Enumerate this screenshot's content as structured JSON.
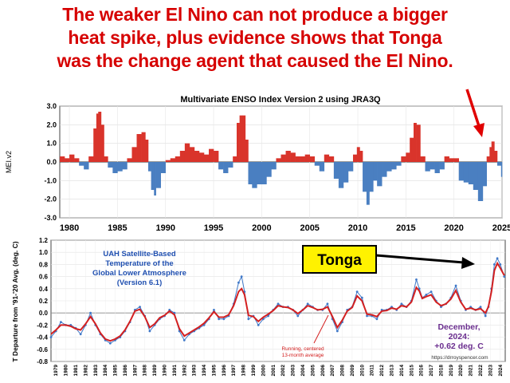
{
  "headline": [
    "The weaker El Nino can not produce a bigger",
    "heat spike, plus evidence shows that Tonga",
    "was the change agent that caused the El Nino."
  ],
  "colors": {
    "headline": "#d60000",
    "positive": "#d9342b",
    "negative": "#4a7fc1",
    "uah_line": "#3f78c8",
    "running_avg": "#d42020",
    "annotation": "#e00000",
    "callout_bg": "#fff200"
  },
  "chart_data": [
    {
      "type": "bar",
      "title": "Multivariate ENSO Index Version 2 using JRA3Q",
      "ylabel": "MEI.v2",
      "ylim": [
        -3.0,
        3.0
      ],
      "xlim": [
        1979,
        2025
      ],
      "y_ticks": [
        "3.0",
        "2.0",
        "1.0",
        "0.0",
        "-1.0",
        "-2.0",
        "-3.0"
      ],
      "x_ticks": [
        "1980",
        "1985",
        "1990",
        "1995",
        "2000",
        "2005",
        "2010",
        "2015",
        "2020",
        "2025"
      ],
      "grid": true,
      "series": [
        {
          "x": [
            1979.0,
            1979.5,
            1980.0,
            1980.5,
            1981.0,
            1981.5,
            1982.0,
            1982.5,
            1982.8,
            1983.0,
            1983.3,
            1983.6,
            1984.0,
            1984.5,
            1985.0,
            1985.5,
            1986.0,
            1986.5,
            1987.0,
            1987.5,
            1987.9,
            1988.2,
            1988.5,
            1988.8,
            1989.0,
            1989.5,
            1990.0,
            1990.5,
            1991.0,
            1991.5,
            1992.0,
            1992.5,
            1993.0,
            1993.5,
            1994.0,
            1994.5,
            1995.0,
            1995.5,
            1996.0,
            1996.5,
            1997.0,
            1997.4,
            1997.7,
            1998.0,
            1998.3,
            1998.6,
            1999.0,
            1999.5,
            2000.0,
            2000.5,
            2001.0,
            2001.5,
            2002.0,
            2002.5,
            2003.0,
            2003.5,
            2004.0,
            2004.5,
            2005.0,
            2005.5,
            2006.0,
            2006.5,
            2007.0,
            2007.5,
            2008.0,
            2008.5,
            2009.0,
            2009.5,
            2009.9,
            2010.2,
            2010.5,
            2010.9,
            2011.2,
            2011.6,
            2012.0,
            2012.5,
            2013.0,
            2013.5,
            2014.0,
            2014.5,
            2015.0,
            2015.4,
            2015.8,
            2016.1,
            2016.5,
            2017.0,
            2017.5,
            2018.0,
            2018.5,
            2019.0,
            2019.5,
            2020.0,
            2020.5,
            2021.0,
            2021.5,
            2022.0,
            2022.5,
            2023.0,
            2023.4,
            2023.7,
            2023.9,
            2024.2,
            2024.5,
            2024.9
          ],
          "values": [
            0.3,
            0.2,
            0.4,
            0.2,
            -0.2,
            -0.4,
            0.3,
            1.8,
            2.6,
            2.7,
            2.0,
            0.3,
            -0.3,
            -0.6,
            -0.5,
            -0.4,
            0.2,
            0.8,
            1.5,
            1.6,
            1.2,
            -0.5,
            -1.5,
            -1.8,
            -1.4,
            -0.6,
            0.1,
            0.2,
            0.3,
            0.6,
            1.0,
            0.8,
            0.6,
            0.5,
            0.4,
            0.7,
            0.6,
            -0.4,
            -0.6,
            -0.3,
            0.3,
            2.1,
            2.5,
            2.5,
            1.2,
            -1.2,
            -1.4,
            -1.2,
            -1.2,
            -0.8,
            -0.4,
            0.2,
            0.4,
            0.6,
            0.5,
            0.3,
            0.3,
            0.4,
            0.3,
            -0.2,
            -0.5,
            0.4,
            0.3,
            -0.9,
            -1.4,
            -1.1,
            -0.5,
            0.4,
            0.8,
            0.6,
            -1.6,
            -2.3,
            -1.6,
            -1.0,
            -1.3,
            -0.8,
            -0.5,
            -0.4,
            -0.2,
            0.3,
            0.5,
            1.3,
            2.1,
            2.0,
            0.3,
            -0.5,
            -0.4,
            -0.6,
            -0.4,
            0.3,
            0.2,
            0.2,
            -1.0,
            -1.1,
            -1.2,
            -1.5,
            -2.1,
            -1.3,
            0.3,
            0.8,
            1.1,
            0.6,
            -0.2,
            -0.8
          ]
        }
      ]
    },
    {
      "type": "line",
      "title": "UAH Satellite-Based Temperature of the Global Lower Atmosphere (Version 6.1)",
      "title_lines": [
        "UAH Satellite-Based",
        "Temperature of the",
        "Global Lower Atmosphere",
        "(Version 6.1)"
      ],
      "ylabel": "T Departure from '91-'20 Avg. (deg. C)",
      "ylim": [
        -0.8,
        1.2
      ],
      "xlim": [
        1979,
        2025
      ],
      "y_ticks": [
        "1.2",
        "1.0",
        "0.8",
        "0.6",
        "0.4",
        "0.2",
        "0.0",
        "-0.2",
        "-0.4",
        "-0.6",
        "-0.8"
      ],
      "x_ticks": [
        "1979",
        "1980",
        "1981",
        "1982",
        "1983",
        "1984",
        "1985",
        "1986",
        "1987",
        "1988",
        "1989",
        "1990",
        "1991",
        "1992",
        "1993",
        "1994",
        "1995",
        "1996",
        "1997",
        "1998",
        "1999",
        "2000",
        "2001",
        "2002",
        "2003",
        "2004",
        "2005",
        "2006",
        "2007",
        "2008",
        "2009",
        "2010",
        "2011",
        "2012",
        "2013",
        "2014",
        "2015",
        "2016",
        "2017",
        "2018",
        "2019",
        "2020",
        "2021",
        "2022",
        "2023",
        "2024"
      ],
      "grid": true,
      "series": [
        {
          "x": [
            1979.0,
            1979.5,
            1980.0,
            1980.5,
            1981.0,
            1981.5,
            1982.0,
            1982.5,
            1983.0,
            1983.5,
            1984.0,
            1984.5,
            1985.0,
            1985.5,
            1986.0,
            1986.5,
            1987.0,
            1987.5,
            1988.0,
            1988.5,
            1989.0,
            1989.5,
            1990.0,
            1990.5,
            1991.0,
            1991.5,
            1992.0,
            1992.5,
            1993.0,
            1993.5,
            1994.0,
            1994.5,
            1995.0,
            1995.5,
            1996.0,
            1996.5,
            1997.0,
            1997.5,
            1998.0,
            1998.3,
            1998.6,
            1999.0,
            1999.5,
            2000.0,
            2000.5,
            2001.0,
            2001.5,
            2002.0,
            2002.5,
            2003.0,
            2003.5,
            2004.0,
            2004.5,
            2005.0,
            2005.5,
            2006.0,
            2006.5,
            2007.0,
            2007.5,
            2008.0,
            2008.5,
            2009.0,
            2009.5,
            2010.0,
            2010.5,
            2011.0,
            2011.5,
            2012.0,
            2012.5,
            2013.0,
            2013.5,
            2014.0,
            2014.5,
            2015.0,
            2015.5,
            2016.0,
            2016.3,
            2016.6,
            2017.0,
            2017.5,
            2018.0,
            2018.5,
            2019.0,
            2019.5,
            2020.0,
            2020.5,
            2021.0,
            2021.5,
            2022.0,
            2022.5,
            2023.0,
            2023.3,
            2023.6,
            2023.9,
            2024.2,
            2024.5,
            2024.9
          ],
          "values": [
            -0.4,
            -0.3,
            -0.15,
            -0.2,
            -0.2,
            -0.25,
            -0.35,
            -0.2,
            0.0,
            -0.2,
            -0.35,
            -0.45,
            -0.5,
            -0.45,
            -0.4,
            -0.3,
            -0.15,
            0.05,
            0.1,
            -0.05,
            -0.3,
            -0.2,
            -0.1,
            -0.05,
            0.05,
            0.0,
            -0.3,
            -0.45,
            -0.35,
            -0.3,
            -0.25,
            -0.2,
            -0.1,
            0.05,
            -0.1,
            -0.1,
            -0.05,
            0.15,
            0.5,
            0.6,
            0.35,
            -0.1,
            -0.05,
            -0.2,
            -0.1,
            -0.05,
            0.05,
            0.15,
            0.1,
            0.1,
            0.05,
            -0.05,
            0.05,
            0.15,
            0.1,
            0.05,
            0.05,
            0.15,
            -0.1,
            -0.3,
            -0.15,
            0.05,
            0.1,
            0.35,
            0.25,
            -0.05,
            -0.05,
            -0.1,
            0.05,
            0.05,
            0.1,
            0.05,
            0.15,
            0.1,
            0.2,
            0.55,
            0.4,
            0.25,
            0.3,
            0.35,
            0.2,
            0.1,
            0.15,
            0.25,
            0.45,
            0.2,
            0.05,
            0.1,
            0.05,
            0.1,
            -0.05,
            0.1,
            0.4,
            0.8,
            0.9,
            0.8,
            0.6
          ]
        },
        {
          "name": "Running, centered 13-month average",
          "x": [
            1979.0,
            1979.5,
            1980.0,
            1980.5,
            1981.0,
            1981.5,
            1982.0,
            1982.5,
            1983.0,
            1983.5,
            1984.0,
            1984.5,
            1985.0,
            1985.5,
            1986.0,
            1986.5,
            1987.0,
            1987.5,
            1988.0,
            1988.5,
            1989.0,
            1989.5,
            1990.0,
            1990.5,
            1991.0,
            1991.5,
            1992.0,
            1992.5,
            1993.0,
            1993.5,
            1994.0,
            1994.5,
            1995.0,
            1995.5,
            1996.0,
            1996.5,
            1997.0,
            1997.5,
            1998.0,
            1998.3,
            1998.6,
            1999.0,
            1999.5,
            2000.0,
            2000.5,
            2001.0,
            2001.5,
            2002.0,
            2002.5,
            2003.0,
            2003.5,
            2004.0,
            2004.5,
            2005.0,
            2005.5,
            2006.0,
            2006.5,
            2007.0,
            2007.5,
            2008.0,
            2008.5,
            2009.0,
            2009.5,
            2010.0,
            2010.5,
            2011.0,
            2011.5,
            2012.0,
            2012.5,
            2013.0,
            2013.5,
            2014.0,
            2014.5,
            2015.0,
            2015.5,
            2016.0,
            2016.3,
            2016.6,
            2017.0,
            2017.5,
            2018.0,
            2018.5,
            2019.0,
            2019.5,
            2020.0,
            2020.5,
            2021.0,
            2021.5,
            2022.0,
            2022.5,
            2023.0,
            2023.3,
            2023.6,
            2023.9,
            2024.2,
            2024.5,
            2024.9
          ],
          "values": [
            -0.35,
            -0.28,
            -0.2,
            -0.2,
            -0.22,
            -0.26,
            -0.28,
            -0.18,
            -0.06,
            -0.18,
            -0.33,
            -0.43,
            -0.46,
            -0.43,
            -0.38,
            -0.28,
            -0.14,
            0.03,
            0.06,
            -0.06,
            -0.24,
            -0.18,
            -0.08,
            -0.04,
            0.03,
            -0.03,
            -0.26,
            -0.38,
            -0.33,
            -0.28,
            -0.23,
            -0.17,
            -0.08,
            0.02,
            -0.07,
            -0.07,
            -0.03,
            0.12,
            0.35,
            0.4,
            0.3,
            -0.04,
            -0.06,
            -0.14,
            -0.07,
            -0.02,
            0.04,
            0.12,
            0.1,
            0.09,
            0.05,
            -0.01,
            0.05,
            0.12,
            0.09,
            0.05,
            0.06,
            0.1,
            -0.06,
            -0.24,
            -0.12,
            0.03,
            0.09,
            0.28,
            0.2,
            -0.02,
            -0.03,
            -0.06,
            0.03,
            0.04,
            0.08,
            0.06,
            0.12,
            0.1,
            0.18,
            0.42,
            0.36,
            0.24,
            0.27,
            0.3,
            0.18,
            0.12,
            0.15,
            0.23,
            0.37,
            0.18,
            0.06,
            0.08,
            0.05,
            0.07,
            0.0,
            0.1,
            0.35,
            0.7,
            0.82,
            0.74,
            0.62
          ]
        }
      ],
      "annotations": {
        "running_label": [
          "Running, centered",
          "13-month average"
        ],
        "latest": [
          "December,",
          "2024:",
          "+0.62 deg. C"
        ],
        "credit": "https://drroyspencer.com",
        "callout": "Tonga"
      }
    }
  ]
}
